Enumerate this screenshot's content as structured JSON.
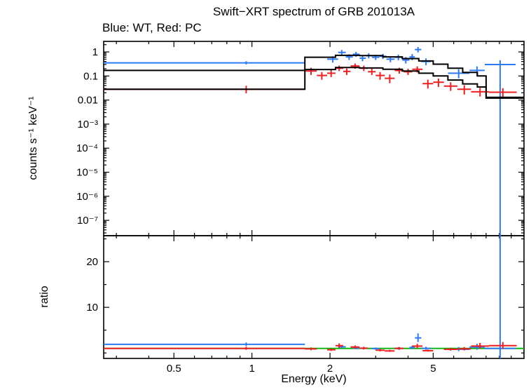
{
  "chart_data": {
    "type": "line",
    "title": "Swift−XRT spectrum of GRB 201013A",
    "subtitle": "Blue: WT, Red: PC",
    "xlabel": "Energy (keV)",
    "x_scale": "log",
    "xlim": [
      0.268,
      11.2
    ],
    "x_major_ticks": [
      0.5,
      1,
      2,
      5
    ],
    "x_major_tick_labels": [
      "0.5",
      "1",
      "2",
      "5"
    ],
    "x_minor_ticks": [
      0.3,
      0.4,
      0.6,
      0.7,
      0.8,
      0.9,
      3,
      4,
      6,
      7,
      8,
      9,
      10
    ],
    "colors": {
      "wt": "#2d7bf5",
      "pc": "#f01e1e",
      "model": "#000000",
      "reference": "#00b400"
    },
    "top_panel": {
      "ylabel": "counts s⁻¹ keV⁻¹",
      "y_scale": "log",
      "ylim": [
        2.3e-08,
        2.74
      ],
      "y_major_ticks": [
        1,
        0.1,
        0.01,
        0.001,
        0.0001,
        1e-05,
        1e-06,
        1e-07
      ],
      "y_major_tick_labels": [
        "1",
        "0.1",
        "0.01",
        "10⁻³",
        "10⁻⁴",
        "10⁻⁵",
        "10⁻⁶",
        "10⁻⁷"
      ],
      "series": [
        {
          "name": "WT data",
          "type": "errorbar",
          "color": "#2d7bf5",
          "bins": [
            [
              0.268,
              1.6,
              0.95,
              0.35,
              0.05,
              0.06
            ],
            [
              1.95,
              2.15,
              2.05,
              0.5,
              0.14,
              0.16
            ],
            [
              2.15,
              2.3,
              2.22,
              0.95,
              0.22,
              0.25
            ],
            [
              2.3,
              2.45,
              2.37,
              0.62,
              0.16,
              0.18
            ],
            [
              2.45,
              2.6,
              2.52,
              0.8,
              0.18,
              0.2
            ],
            [
              2.6,
              2.75,
              2.67,
              0.55,
              0.14,
              0.16
            ],
            [
              2.75,
              2.9,
              2.82,
              0.7,
              0.16,
              0.18
            ],
            [
              2.9,
              3.1,
              3.0,
              0.6,
              0.14,
              0.16
            ],
            [
              3.1,
              3.3,
              3.2,
              0.66,
              0.15,
              0.17
            ],
            [
              3.3,
              3.55,
              3.42,
              0.5,
              0.13,
              0.15
            ],
            [
              3.55,
              3.8,
              3.67,
              0.6,
              0.15,
              0.17
            ],
            [
              3.8,
              4.05,
              3.92,
              0.46,
              0.13,
              0.15
            ],
            [
              4.05,
              4.25,
              4.15,
              0.62,
              0.17,
              0.2
            ],
            [
              4.25,
              4.5,
              4.37,
              1.25,
              0.3,
              0.35
            ],
            [
              4.5,
              4.9,
              4.69,
              0.4,
              0.12,
              0.14
            ],
            [
              5.7,
              6.9,
              6.27,
              0.13,
              0.05,
              0.06
            ],
            [
              6.9,
              7.9,
              7.38,
              0.17,
              0.07,
              0.08
            ],
            [
              7.9,
              10.4,
              9.06,
              0.3,
              0.3,
              0.15
            ]
          ]
        },
        {
          "name": "PC data",
          "type": "errorbar",
          "color": "#f01e1e",
          "bins": [
            [
              0.268,
              1.6,
              0.95,
              0.028,
              0.009,
              0.011
            ],
            [
              1.6,
              1.78,
              1.69,
              0.16,
              0.05,
              0.06
            ],
            [
              1.78,
              1.95,
              1.86,
              0.105,
              0.035,
              0.04
            ],
            [
              1.95,
              2.1,
              2.02,
              0.13,
              0.04,
              0.05
            ],
            [
              2.1,
              2.25,
              2.17,
              0.21,
              0.05,
              0.06
            ],
            [
              2.25,
              2.4,
              2.32,
              0.155,
              0.045,
              0.05
            ],
            [
              2.4,
              2.6,
              2.5,
              0.26,
              0.06,
              0.07
            ],
            [
              2.6,
              2.8,
              2.7,
              0.21,
              0.05,
              0.06
            ],
            [
              2.8,
              3.0,
              2.9,
              0.15,
              0.04,
              0.05
            ],
            [
              3.0,
              3.25,
              3.12,
              0.105,
              0.035,
              0.04
            ],
            [
              3.25,
              3.55,
              3.4,
              0.08,
              0.03,
              0.035
            ],
            [
              3.55,
              3.85,
              3.7,
              0.17,
              0.045,
              0.05
            ],
            [
              3.85,
              4.15,
              4.0,
              0.15,
              0.04,
              0.05
            ],
            [
              4.15,
              4.55,
              4.34,
              0.19,
              0.05,
              0.06
            ],
            [
              4.55,
              5.0,
              4.77,
              0.048,
              0.018,
              0.022
            ],
            [
              5.0,
              5.5,
              5.24,
              0.055,
              0.02,
              0.024
            ],
            [
              5.5,
              6.2,
              5.84,
              0.038,
              0.014,
              0.017
            ],
            [
              6.2,
              7.0,
              6.59,
              0.028,
              0.011,
              0.013
            ],
            [
              7.0,
              8.2,
              7.58,
              0.022,
              0.008,
              0.01
            ],
            [
              8.2,
              10.5,
              9.28,
              0.021,
              0.008,
              0.01
            ]
          ]
        },
        {
          "name": "WT model",
          "type": "step",
          "color": "#000000",
          "bins": [
            [
              0.268,
              1.6,
              0.17
            ],
            [
              1.6,
              2.1,
              0.6
            ],
            [
              2.1,
              2.6,
              0.72
            ],
            [
              2.6,
              3.2,
              0.7
            ],
            [
              3.2,
              3.8,
              0.62
            ],
            [
              3.8,
              4.4,
              0.53
            ],
            [
              4.4,
              5.0,
              0.42
            ],
            [
              5.0,
              5.7,
              0.31
            ],
            [
              5.7,
              6.5,
              0.21
            ],
            [
              6.5,
              7.4,
              0.14
            ],
            [
              7.4,
              8.0,
              0.1
            ],
            [
              8.0,
              11.2,
              0.012
            ]
          ]
        },
        {
          "name": "PC model",
          "type": "step",
          "color": "#000000",
          "bins": [
            [
              0.268,
              1.6,
              0.028
            ],
            [
              1.6,
              2.1,
              0.185
            ],
            [
              2.1,
              2.6,
              0.225
            ],
            [
              2.6,
              3.2,
              0.215
            ],
            [
              3.2,
              3.8,
              0.19
            ],
            [
              3.8,
              4.4,
              0.16
            ],
            [
              4.4,
              5.0,
              0.13
            ],
            [
              5.0,
              5.7,
              0.1
            ],
            [
              5.7,
              6.5,
              0.068
            ],
            [
              6.5,
              7.4,
              0.047
            ],
            [
              7.4,
              8.0,
              0.035
            ],
            [
              8.0,
              11.2,
              0.013
            ]
          ]
        }
      ]
    },
    "bottom_panel": {
      "ylabel": "ratio",
      "y_scale": "linear",
      "ylim": [
        -1.2,
        25.7
      ],
      "y_major_ticks": [
        10,
        20
      ],
      "y_major_tick_labels": [
        "10",
        "20"
      ],
      "y_minor_ticks": [
        0,
        5,
        15,
        25
      ],
      "reference_line": {
        "y": 1,
        "color": "#00b400"
      },
      "series": [
        {
          "name": "WT ratio",
          "type": "errorbar",
          "color": "#2d7bf5",
          "bins": [
            [
              0.268,
              1.6,
              0.95,
              1.9,
              0.4,
              0.4
            ],
            [
              2.15,
              2.3,
              2.22,
              1.35,
              0.35,
              0.35
            ],
            [
              2.45,
              2.6,
              2.52,
              1.1,
              0.3,
              0.3
            ],
            [
              2.9,
              3.1,
              3.0,
              0.95,
              0.25,
              0.25
            ],
            [
              3.55,
              3.8,
              3.67,
              1.0,
              0.25,
              0.25
            ],
            [
              4.05,
              4.25,
              4.15,
              1.2,
              0.4,
              0.4
            ],
            [
              4.25,
              4.5,
              4.37,
              3.3,
              0.9,
              1.0
            ],
            [
              4.5,
              4.9,
              4.69,
              1.0,
              0.3,
              0.35
            ],
            [
              5.7,
              6.9,
              6.27,
              0.8,
              0.4,
              0.5
            ],
            [
              6.9,
              7.9,
              7.38,
              1.3,
              0.6,
              0.7
            ],
            [
              7.9,
              10.4,
              9.06,
              1.0,
              40,
              40
            ]
          ]
        },
        {
          "name": "PC ratio",
          "type": "errorbar",
          "color": "#f01e1e",
          "bins": [
            [
              0.268,
              1.6,
              0.95,
              1.0,
              0.3,
              0.35
            ],
            [
              1.6,
              1.78,
              1.69,
              0.9,
              0.3,
              0.3
            ],
            [
              1.95,
              2.1,
              2.02,
              0.7,
              0.25,
              0.25
            ],
            [
              2.1,
              2.25,
              2.17,
              1.6,
              0.5,
              0.5
            ],
            [
              2.4,
              2.6,
              2.5,
              1.3,
              0.35,
              0.35
            ],
            [
              2.6,
              2.8,
              2.7,
              1.05,
              0.3,
              0.3
            ],
            [
              3.0,
              3.25,
              3.12,
              0.6,
              0.25,
              0.25
            ],
            [
              3.25,
              3.55,
              3.4,
              0.45,
              0.2,
              0.25
            ],
            [
              3.55,
              3.85,
              3.7,
              1.0,
              0.3,
              0.3
            ],
            [
              4.15,
              4.55,
              4.34,
              1.5,
              0.45,
              0.5
            ],
            [
              4.55,
              5.0,
              4.77,
              0.5,
              0.2,
              0.25
            ],
            [
              5.5,
              6.2,
              5.84,
              0.8,
              0.3,
              0.35
            ],
            [
              6.2,
              7.0,
              6.59,
              0.9,
              0.35,
              0.4
            ],
            [
              7.0,
              8.2,
              7.58,
              1.5,
              0.6,
              0.7
            ],
            [
              8.2,
              10.5,
              9.28,
              1.6,
              0.7,
              0.8
            ]
          ]
        }
      ]
    }
  }
}
